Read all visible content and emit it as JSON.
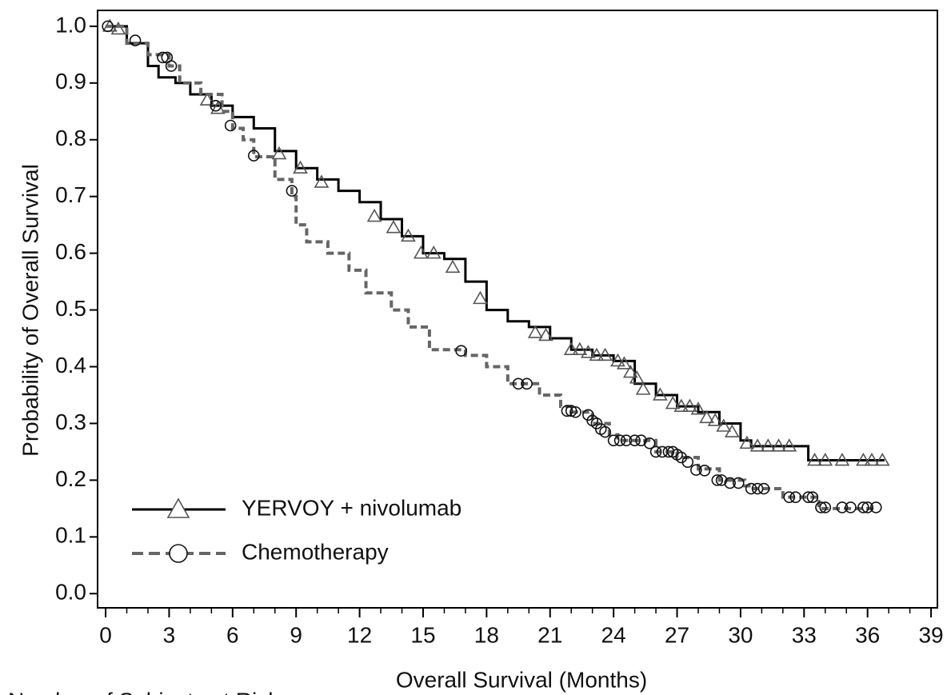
{
  "chart_data": {
    "type": "step",
    "x_label": "Overall Survival (Months)",
    "y_label": "Probability of Overall Survival",
    "footer": "Number of Subjects at Risk",
    "xlim": [
      -0.38,
      39.3
    ],
    "ylim": [
      -0.025,
      1.028
    ],
    "xticks": [
      0,
      3,
      6,
      9,
      12,
      15,
      18,
      21,
      24,
      27,
      30,
      33,
      36,
      39
    ],
    "yticks": [
      {
        "value": 0,
        "label": "0.0"
      },
      0.1,
      0.2,
      0.3,
      0.4,
      0.5,
      0.6,
      0.7,
      0.8,
      0.9,
      {
        "value": 1,
        "label": "1.0"
      }
    ],
    "legend": "lower left",
    "series": [
      {
        "name": "YERVOY + nivolumab",
        "color": "#000000",
        "marker": "triangle",
        "marker_color": "#555555",
        "dash": false,
        "x": [
          0,
          1,
          2,
          2.5,
          3.3,
          4,
          5,
          6,
          7,
          8,
          9,
          10,
          11,
          12,
          13,
          14,
          15,
          16,
          17,
          18,
          19,
          20,
          21,
          22,
          23,
          24,
          25,
          26,
          27,
          28,
          29,
          30,
          30.5,
          33.2,
          36.8
        ],
        "values": [
          1.0,
          0.97,
          0.93,
          0.91,
          0.9,
          0.88,
          0.86,
          0.84,
          0.82,
          0.78,
          0.75,
          0.73,
          0.71,
          0.69,
          0.66,
          0.63,
          0.6,
          0.59,
          0.55,
          0.5,
          0.48,
          0.47,
          0.45,
          0.43,
          0.42,
          0.41,
          0.37,
          0.35,
          0.33,
          0.32,
          0.3,
          0.27,
          0.26,
          0.235,
          0.235
        ],
        "censor_x": [
          0.2,
          0.6,
          4.8,
          5.3,
          8.2,
          9.2,
          10.2,
          12.7,
          13.6,
          14.3,
          14.9,
          15.5,
          16.4,
          17.7,
          20.3,
          20.8,
          22,
          22.4,
          22.8,
          23.2,
          23.6,
          24.2,
          24.5,
          24.8,
          25.1,
          25.4,
          26.2,
          26.8,
          27.2,
          27.6,
          28,
          28.4,
          28.8,
          29.2,
          29.6,
          30.3,
          30.8,
          31.3,
          31.8,
          32.3,
          33.5,
          34,
          34.8,
          35.8,
          36.2,
          36.7
        ],
        "censor_values": [
          1.0,
          0.995,
          0.87,
          0.855,
          0.775,
          0.75,
          0.725,
          0.665,
          0.645,
          0.63,
          0.6,
          0.6,
          0.575,
          0.52,
          0.46,
          0.455,
          0.43,
          0.43,
          0.425,
          0.42,
          0.42,
          0.41,
          0.405,
          0.39,
          0.38,
          0.36,
          0.35,
          0.335,
          0.33,
          0.33,
          0.325,
          0.31,
          0.305,
          0.295,
          0.285,
          0.265,
          0.26,
          0.26,
          0.26,
          0.26,
          0.235,
          0.235,
          0.235,
          0.235,
          0.235,
          0.235
        ]
      },
      {
        "name": "Chemotherapy",
        "color": "#666666",
        "marker": "circle",
        "marker_color": "#111111",
        "dash": true,
        "x": [
          0,
          1,
          2,
          3,
          3.5,
          4.5,
          5.5,
          6,
          6.5,
          7,
          8,
          8.8,
          9,
          9.5,
          10.5,
          11.5,
          12.3,
          13.5,
          14.3,
          15.3,
          17,
          18,
          19,
          20.5,
          21.5,
          22,
          23,
          23.8,
          24.2,
          26,
          27,
          28,
          29,
          30.2,
          30.5,
          32,
          33.7,
          36.4
        ],
        "values": [
          1.0,
          0.97,
          0.95,
          0.93,
          0.9,
          0.88,
          0.85,
          0.82,
          0.8,
          0.77,
          0.73,
          0.7,
          0.65,
          0.62,
          0.6,
          0.57,
          0.53,
          0.5,
          0.47,
          0.43,
          0.42,
          0.4,
          0.37,
          0.35,
          0.33,
          0.32,
          0.3,
          0.28,
          0.27,
          0.25,
          0.24,
          0.22,
          0.2,
          0.19,
          0.185,
          0.17,
          0.15,
          0.15
        ],
        "censor_x": [
          0.1,
          1.4,
          2.7,
          2.9,
          3.1,
          5.2,
          5.9,
          7.0,
          8.8,
          16.8,
          19.5,
          19.9,
          21.8,
          22,
          22.2,
          22.8,
          23,
          23.2,
          23.4,
          23.6,
          24,
          24.3,
          24.6,
          25,
          25.3,
          25.7,
          26,
          26.3,
          26.6,
          26.8,
          27,
          27.2,
          27.5,
          27.9,
          28.3,
          28.9,
          29.1,
          29.5,
          29.9,
          30.5,
          30.8,
          31.1,
          32.3,
          32.6,
          33.2,
          33.4,
          33.8,
          34,
          34.8,
          35.2,
          35.8,
          36,
          36.4
        ],
        "censor_values": [
          1.0,
          0.975,
          0.945,
          0.945,
          0.93,
          0.86,
          0.825,
          0.772,
          0.71,
          0.428,
          0.37,
          0.37,
          0.322,
          0.322,
          0.32,
          0.315,
          0.305,
          0.3,
          0.29,
          0.285,
          0.27,
          0.27,
          0.27,
          0.27,
          0.27,
          0.265,
          0.25,
          0.25,
          0.25,
          0.25,
          0.245,
          0.24,
          0.232,
          0.218,
          0.217,
          0.2,
          0.2,
          0.195,
          0.195,
          0.185,
          0.185,
          0.185,
          0.17,
          0.17,
          0.17,
          0.17,
          0.152,
          0.152,
          0.152,
          0.152,
          0.152,
          0.152,
          0.152
        ]
      }
    ]
  }
}
